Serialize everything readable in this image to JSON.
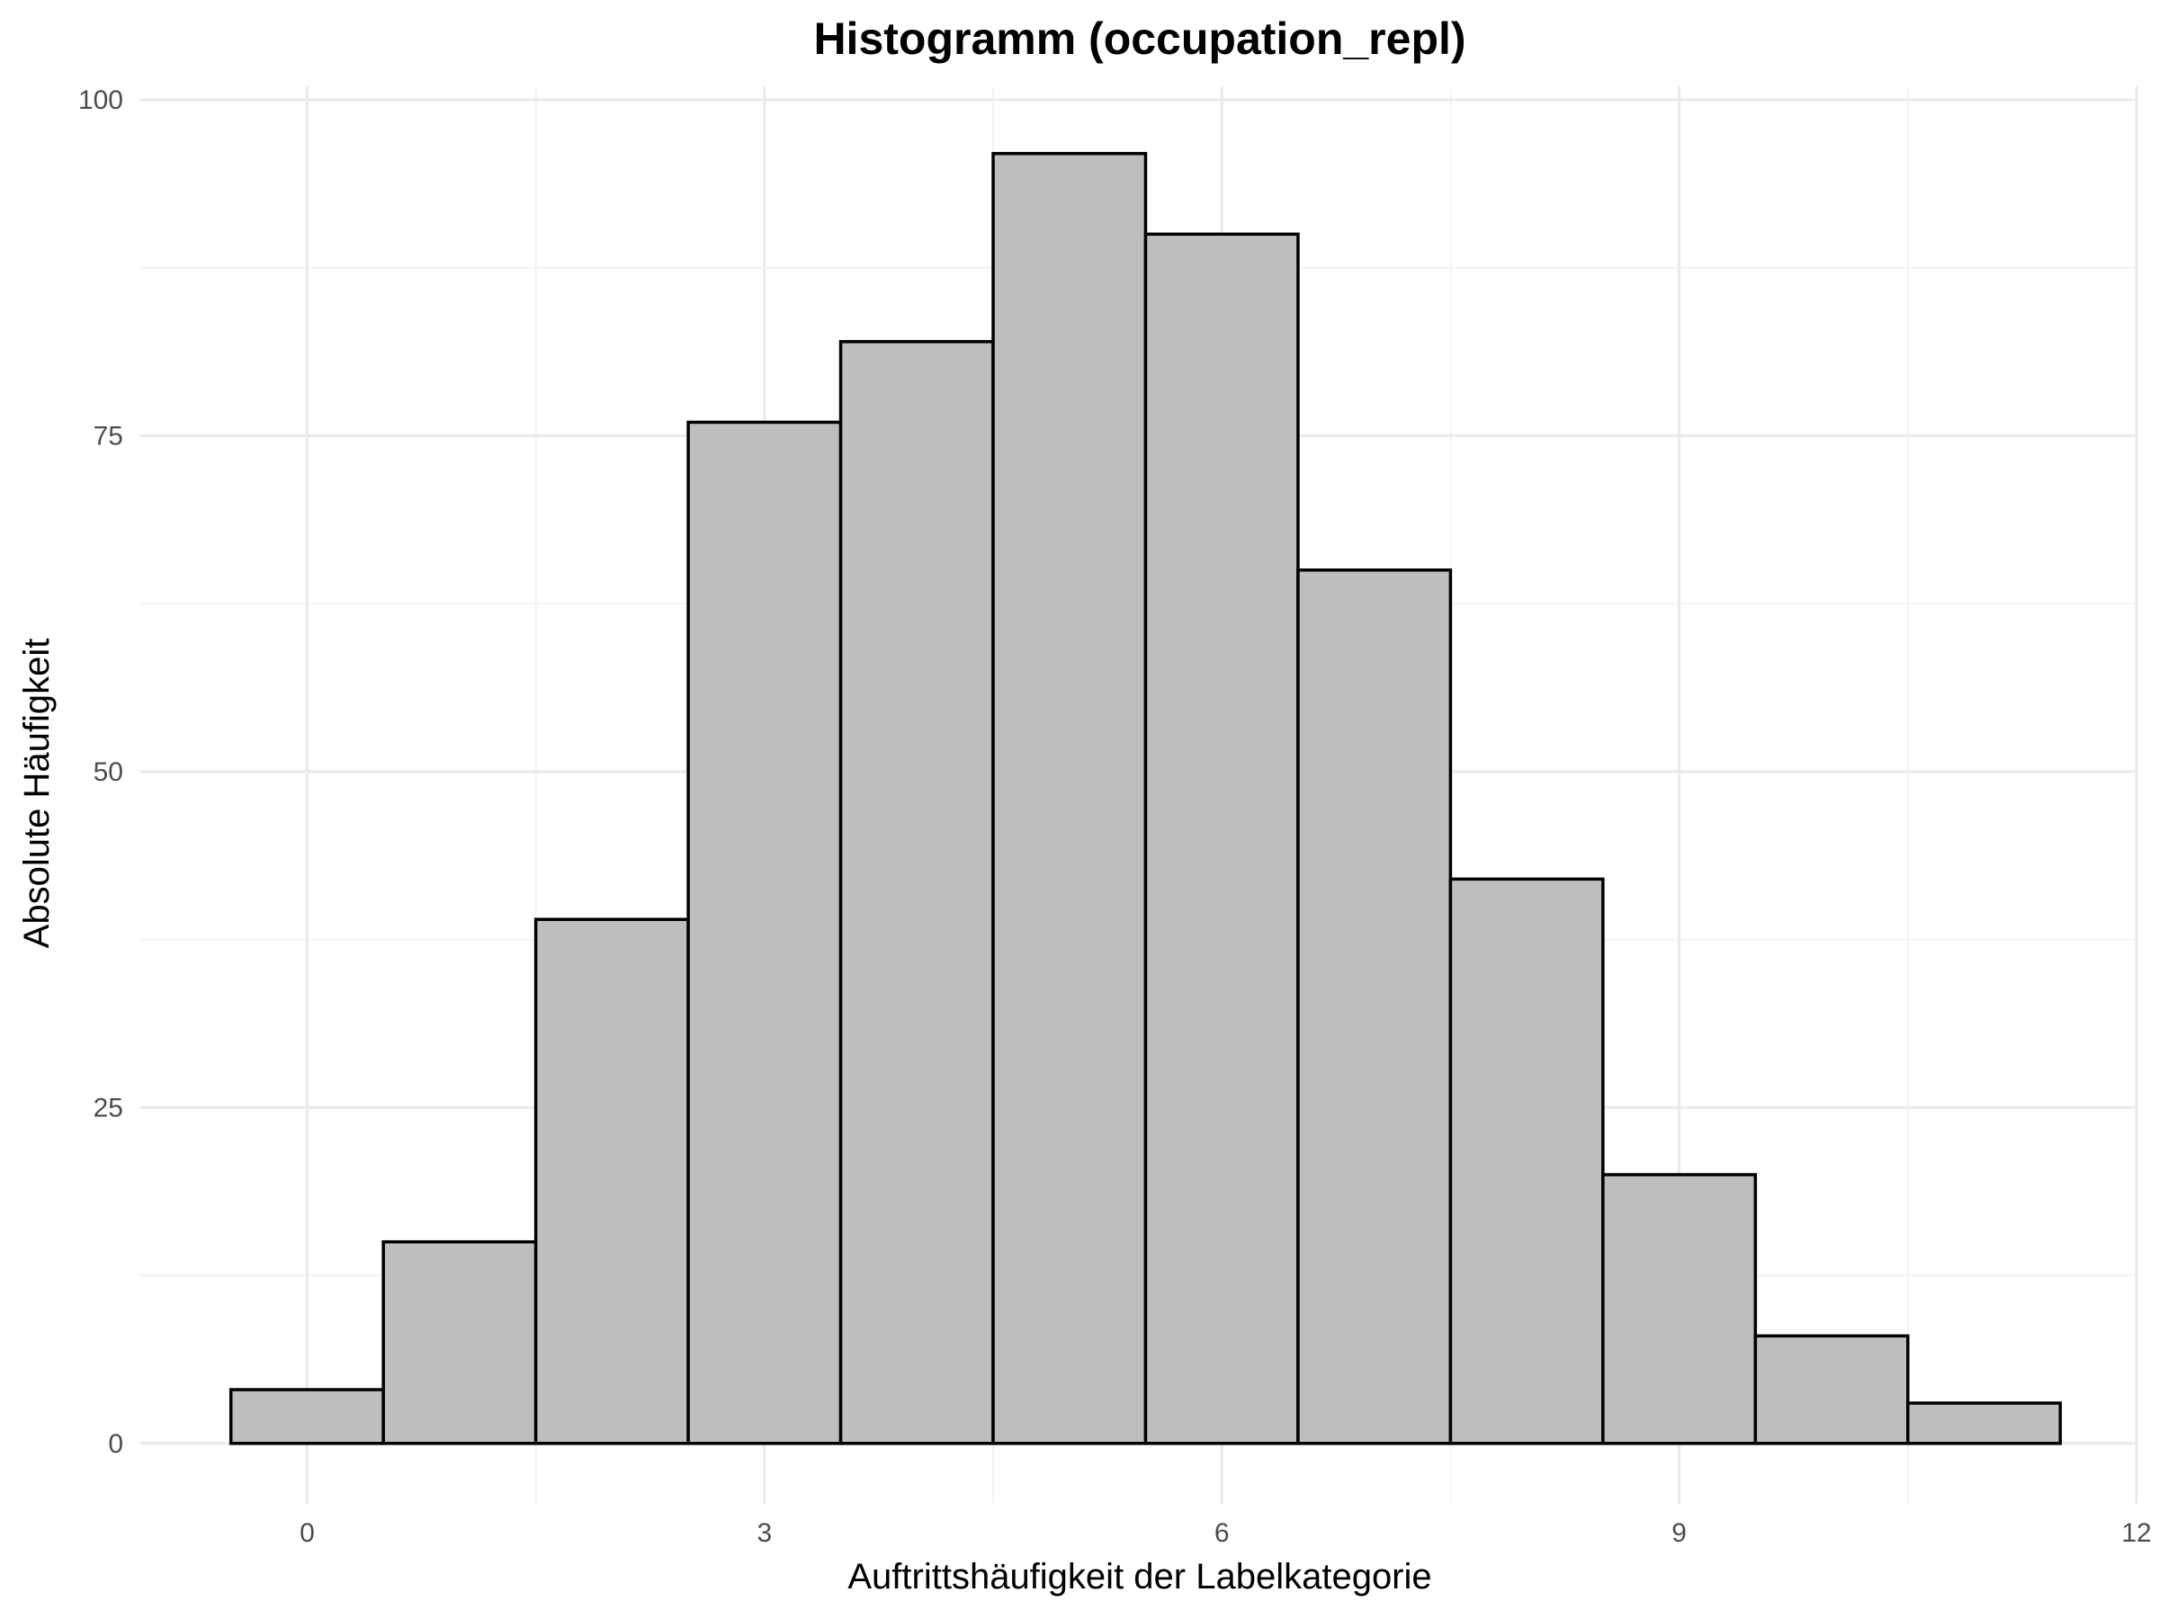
{
  "chart_data": {
    "type": "bar",
    "title": "Histogramm (occupation_repl)",
    "xlabel": "Auftrittshäufigkeit der Labelkategorie",
    "ylabel": "Absolute Häufigkeit",
    "x": [
      0,
      1,
      2,
      3,
      4,
      5,
      6,
      7,
      8,
      9,
      10,
      11
    ],
    "bin_width": 1,
    "values": [
      4,
      15,
      39,
      76,
      82,
      96,
      90,
      65,
      42,
      20,
      8,
      3
    ],
    "xlim": [
      -1.1,
      12.0
    ],
    "ylim": [
      -4.5,
      101
    ],
    "x_ticks": [
      0,
      3,
      6,
      9,
      12
    ],
    "y_ticks": [
      0,
      25,
      50,
      75,
      100
    ],
    "x_minor_ticks": [
      1.5,
      4.5,
      7.5,
      10.5
    ],
    "y_minor_ticks": [
      12.5,
      37.5,
      62.5,
      87.5
    ],
    "grid": true,
    "legend": "none",
    "colors": {
      "bar_fill": "#bebebe",
      "bar_stroke": "#000000",
      "grid": "#ebebeb",
      "tick_text": "#4d4d4d"
    }
  }
}
